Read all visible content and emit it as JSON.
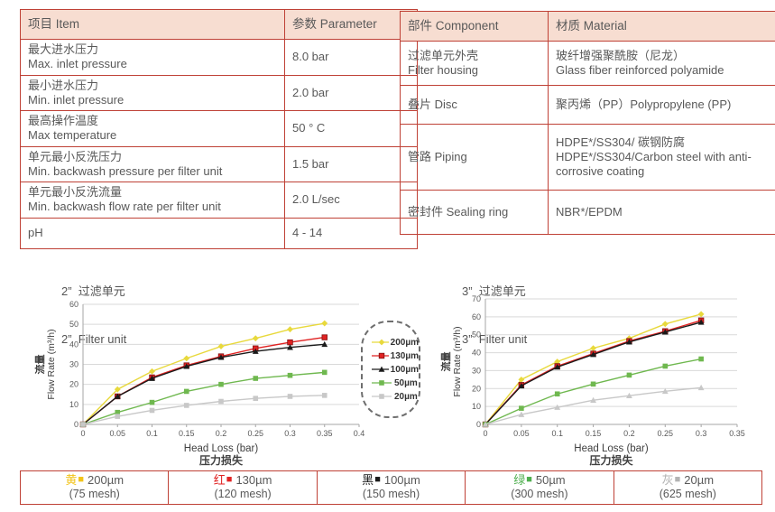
{
  "page": {
    "accent_border": "#bf4136",
    "header_fill": "#f7ddd1",
    "text_color": "#595959",
    "grid_color": "#d9d9d9",
    "axis_color": "#a6a6a6"
  },
  "spec_table": {
    "headers": [
      "项目 Item",
      "参数 Parameter"
    ],
    "rows": [
      {
        "item_zh": "最大进水压力",
        "item_en": "Max. inlet pressure",
        "value": "8.0 bar"
      },
      {
        "item_zh": "最小进水压力",
        "item_en": "Min. inlet pressure",
        "value": "2.0 bar"
      },
      {
        "item_zh": "最高操作温度",
        "item_en": "Max temperature",
        "value": "50 ° C"
      },
      {
        "item_zh": "单元最小反洗压力",
        "item_en": "Min. backwash pressure per filter unit",
        "value": "1.5 bar"
      },
      {
        "item_zh": "单元最小反洗流量",
        "item_en": "Min. backwash flow rate per filter unit",
        "value": "2.0 L/sec"
      },
      {
        "item_zh": "pH",
        "item_en": "",
        "value": "4 - 14"
      }
    ]
  },
  "material_table": {
    "headers": [
      "部件 Component",
      "材质 Material"
    ],
    "rows": [
      {
        "component_zh": "过滤单元外壳",
        "component_en": "Filter housing",
        "material_zh": "玻纤增强聚酰胺（尼龙）",
        "material_en": "Glass fiber reinforced polyamide"
      },
      {
        "component_zh": "叠片 Disc",
        "component_en": "",
        "material_zh": "聚丙烯（PP）Polypropylene (PP)",
        "material_en": ""
      },
      {
        "component_zh": "管路 Piping",
        "component_en": "",
        "material_zh": "HDPE*/SS304/ 碳钢防腐",
        "material_en": "HDPE*/SS304/Carbon steel with anti-corrosive coating"
      },
      {
        "component_zh": "密封件 Sealing ring",
        "component_en": "",
        "material_zh": "NBR*/EPDM",
        "material_en": ""
      }
    ]
  },
  "chart_data": [
    {
      "type": "line",
      "title_zh": "2”  过滤单元",
      "title_en": "2”  Filter unit",
      "xlabel": "Head Loss (bar)",
      "xlabel_zh": "压力损失",
      "ylabel_zh": "流量",
      "ylabel": "Flow Rate (m³/h)",
      "xlim": [
        0,
        0.4
      ],
      "ylim": [
        0,
        60
      ],
      "x_tick_step": 0.05,
      "y_tick_step": 10,
      "grid": "horizontal",
      "x": [
        0,
        0.05,
        0.1,
        0.15,
        0.2,
        0.25,
        0.3,
        0.35
      ],
      "series": [
        {
          "name": "200µm",
          "color": "#e8d93c",
          "marker": "diamond",
          "values": [
            0,
            17.5,
            26.5,
            33,
            39,
            43,
            47.5,
            50.5
          ]
        },
        {
          "name": "130µm",
          "color": "#e02222",
          "marker": "square",
          "values": [
            0,
            14,
            23.5,
            29.5,
            34,
            38,
            41,
            43.5
          ]
        },
        {
          "name": "100µm",
          "color": "#1a1a1a",
          "marker": "triangle",
          "values": [
            0,
            14,
            23,
            29,
            33.5,
            36.5,
            38.5,
            40
          ]
        },
        {
          "name": "50µm",
          "color": "#6fb84f",
          "marker": "square",
          "values": [
            0,
            6,
            11,
            16.5,
            20,
            23,
            24.5,
            26
          ]
        },
        {
          "name": "20µm",
          "color": "#c8c8c8",
          "marker": "square",
          "values": [
            0,
            4,
            7,
            9.5,
            11.5,
            13,
            14,
            14.5
          ]
        }
      ]
    },
    {
      "type": "line",
      "title_zh": "3”  过滤单元",
      "title_en": "3”  Filter unit",
      "xlabel": "Head Loss (bar)",
      "xlabel_zh": "压力损失",
      "ylabel_zh": "流量",
      "ylabel": "Flow Rate (m³/h)",
      "xlim": [
        0,
        0.35
      ],
      "ylim": [
        0,
        70
      ],
      "x_tick_step": 0.05,
      "y_tick_step": 10,
      "grid": "horizontal",
      "x": [
        0,
        0.05,
        0.1,
        0.15,
        0.2,
        0.25,
        0.3
      ],
      "series": [
        {
          "name": "200µm",
          "color": "#e8d93c",
          "marker": "diamond",
          "values": [
            0,
            25,
            35,
            42.5,
            48,
            56,
            61.5
          ]
        },
        {
          "name": "130µm",
          "color": "#e02222",
          "marker": "square",
          "values": [
            0,
            22,
            32.5,
            39.5,
            46.5,
            52,
            58
          ]
        },
        {
          "name": "100µm",
          "color": "#1a1a1a",
          "marker": "triangle",
          "values": [
            0,
            21.5,
            32,
            39,
            46,
            51.5,
            57
          ]
        },
        {
          "name": "50µm",
          "color": "#6fb84f",
          "marker": "square",
          "values": [
            0,
            9,
            17,
            22.5,
            27.5,
            32.5,
            36.5
          ]
        },
        {
          "name": "20µm",
          "color": "#c8c8c8",
          "marker": "triangle",
          "values": [
            0,
            5.5,
            9.5,
            13.5,
            16,
            18.5,
            20.5
          ]
        }
      ]
    }
  ],
  "mesh_bar": {
    "cells": [
      {
        "color_zh": "黄",
        "color_hex": "#f2c318",
        "size": "200µm",
        "mesh": "(75 mesh)"
      },
      {
        "color_zh": "红",
        "color_hex": "#e02222",
        "size": "130µm",
        "mesh": "(120 mesh)"
      },
      {
        "color_zh": "黑",
        "color_hex": "#1a1a1a",
        "size": "100µm",
        "mesh": "(150 mesh)"
      },
      {
        "color_zh": "绿",
        "color_hex": "#4faf4f",
        "size": "50µm",
        "mesh": "(300 mesh)"
      },
      {
        "color_zh": "灰",
        "color_hex": "#b3b3b3",
        "size": "20µm",
        "mesh": "(625 mesh)"
      }
    ]
  }
}
